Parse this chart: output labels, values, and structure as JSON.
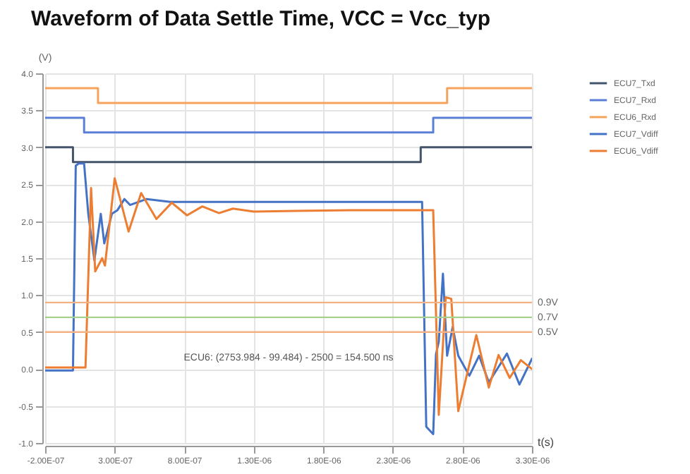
{
  "chart_data": {
    "type": "line",
    "title": "Waveform of Data Settle Time,  VCC = Vcc_typ",
    "xlabel": "t(s)",
    "ylabel": "(V)",
    "xlim": [
      -2e-07,
      3.3e-06
    ],
    "ylim": [
      -1,
      4
    ],
    "xticks": [
      {
        "value": -2e-07,
        "label": "-2.00E-07"
      },
      {
        "value": 3e-07,
        "label": "3.00E-07"
      },
      {
        "value": 8e-07,
        "label": "8.00E-07"
      },
      {
        "value": 1.3e-06,
        "label": "1.30E-06"
      },
      {
        "value": 1.8e-06,
        "label": "1.80E-06"
      },
      {
        "value": 2.3e-06,
        "label": "2.30E-06"
      },
      {
        "value": 2.8e-06,
        "label": "2.80E-06"
      },
      {
        "value": 3.3e-06,
        "label": "3.30E-06"
      }
    ],
    "yticks": [
      {
        "value": -1,
        "label": "-1.0"
      },
      {
        "value": -0.5,
        "label": "-0.5"
      },
      {
        "value": 0,
        "label": "0.0"
      },
      {
        "value": 0.5,
        "label": "0.5"
      },
      {
        "value": 1,
        "label": "1.0"
      },
      {
        "value": 1.5,
        "label": "1.5"
      },
      {
        "value": 2,
        "label": "2.0"
      },
      {
        "value": 2.5,
        "label": "2.5"
      },
      {
        "value": 3,
        "label": "3.0"
      },
      {
        "value": 3.5,
        "label": "3.5"
      },
      {
        "value": 4,
        "label": "4.0"
      }
    ],
    "grid": true,
    "legend": "right",
    "series": [
      {
        "name": "ECU7_Txd",
        "type": "step",
        "color": "#44546a",
        "x": [
          -2e-07,
          0,
          2.5e-06,
          3.3e-06
        ],
        "values": [
          3.0,
          2.8,
          3.0,
          3.0
        ]
      },
      {
        "name": "ECU7_Rxd",
        "type": "step",
        "color": "#5b7fd6",
        "x": [
          -2e-07,
          8e-08,
          2.59e-06,
          3.3e-06
        ],
        "values": [
          3.4,
          3.2,
          3.4,
          3.4
        ]
      },
      {
        "name": "ECU6_Rxd",
        "type": "step",
        "color": "#f5a25d",
        "x": [
          -2e-07,
          1.8e-07,
          2.69e-06,
          3.3e-06
        ],
        "values": [
          3.8,
          3.6,
          3.8,
          3.8
        ]
      },
      {
        "name": "ECU7_Vdiff",
        "type": "line",
        "color": "#4472c4",
        "x": [
          -2e-07,
          0,
          2e-08,
          4e-08,
          8e-08,
          1.1e-07,
          1.54e-07,
          2e-07,
          2.25e-07,
          2.8e-07,
          3.2e-07,
          3.7e-07,
          4.1e-07,
          5.3e-07,
          7e-07,
          1.5e-06,
          2.51e-06,
          2.54e-06,
          2.59e-06,
          2.61e-06,
          2.63e-06,
          2.66e-06,
          2.69e-06,
          2.73e-06,
          2.77e-06,
          2.85e-06,
          2.92e-06,
          2.99e-06,
          3.12e-06,
          3.21e-06,
          3.3e-06
        ],
        "values": [
          -0.02,
          -0.02,
          2.75,
          2.78,
          2.78,
          2.1,
          1.47,
          2.1,
          1.7,
          2.1,
          2.15,
          2.3,
          2.22,
          2.3,
          2.26,
          2.26,
          2.26,
          -0.78,
          -0.88,
          0.2,
          0.37,
          1.29,
          0.18,
          0.57,
          0.18,
          -0.09,
          0.18,
          -0.18,
          0.21,
          -0.21,
          0.14
        ]
      },
      {
        "name": "ECU6_Vdiff",
        "type": "line",
        "color": "#ed7d31",
        "x": [
          -2e-07,
          9e-08,
          1.3e-07,
          1.6e-07,
          2.1e-07,
          2.3e-07,
          3e-07,
          4e-07,
          4.9e-07,
          6e-07,
          7.1e-07,
          8.2e-07,
          9.3e-07,
          1.05e-06,
          1.15e-06,
          1.3e-06,
          1.6e-06,
          2e-06,
          2.59e-06,
          2.63e-06,
          2.68e-06,
          2.72e-06,
          2.77e-06,
          2.9e-06,
          2.99e-06,
          3.06e-06,
          3.14e-06,
          3.22e-06,
          3.3e-06
        ],
        "values": [
          0.02,
          0.02,
          2.45,
          1.32,
          1.5,
          1.4,
          2.58,
          1.86,
          2.38,
          2.03,
          2.25,
          2.08,
          2.2,
          2.11,
          2.17,
          2.13,
          2.14,
          2.15,
          2.15,
          -0.62,
          0.97,
          0.95,
          -0.57,
          0.46,
          -0.25,
          0.19,
          -0.12,
          0.12,
          0.0
        ]
      }
    ],
    "ref_lines": [
      {
        "axis": "y",
        "value": 0.9,
        "label": "0.9V",
        "color": "#f4b183"
      },
      {
        "axis": "y",
        "value": 0.7,
        "label": "0.7V",
        "color": "#a9d18e"
      },
      {
        "axis": "y",
        "value": 0.5,
        "label": "0.5V",
        "color": "#f4b183"
      }
    ],
    "annotations": [
      "ECU6: (2753.984 - 99.484) - 2500 = 154.500 ns"
    ]
  }
}
